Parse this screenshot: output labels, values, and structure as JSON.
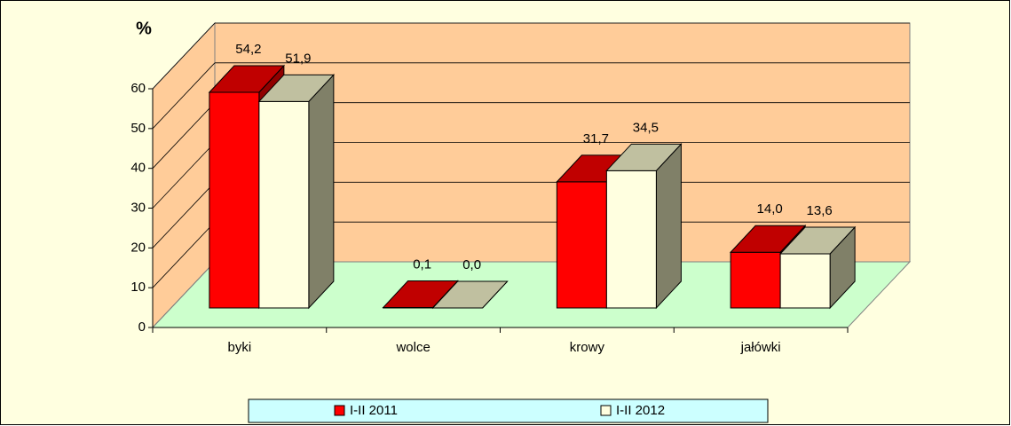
{
  "chart_data": {
    "type": "bar3d",
    "y_label": "%",
    "categories": [
      "byki",
      "wolce",
      "krowy",
      "jałówki"
    ],
    "series": [
      {
        "name": "I-II 2011",
        "color": "#ff0000",
        "top_color": "#c00000",
        "side_color": "#900000",
        "values": [
          54.2,
          0.1,
          31.7,
          14.0
        ],
        "value_labels": [
          "54,2",
          "0,1",
          "31,7",
          "14,0"
        ]
      },
      {
        "name": "I-II 2012",
        "color": "#ffffe0",
        "top_color": "#c0c0a0",
        "side_color": "#808068",
        "values": [
          51.9,
          0.0,
          34.5,
          13.6
        ],
        "value_labels": [
          "51,9",
          "0,0",
          "34,5",
          "13,6"
        ]
      }
    ],
    "ylim": [
      0,
      60
    ],
    "yticks": [
      0,
      10,
      20,
      30,
      40,
      50,
      60
    ],
    "grid": true,
    "wall_color": "#ffcc99",
    "floor_color": "#ccffcc",
    "background": "#ffffe0",
    "legend_color": "#ccffff",
    "legend": "bottom"
  }
}
